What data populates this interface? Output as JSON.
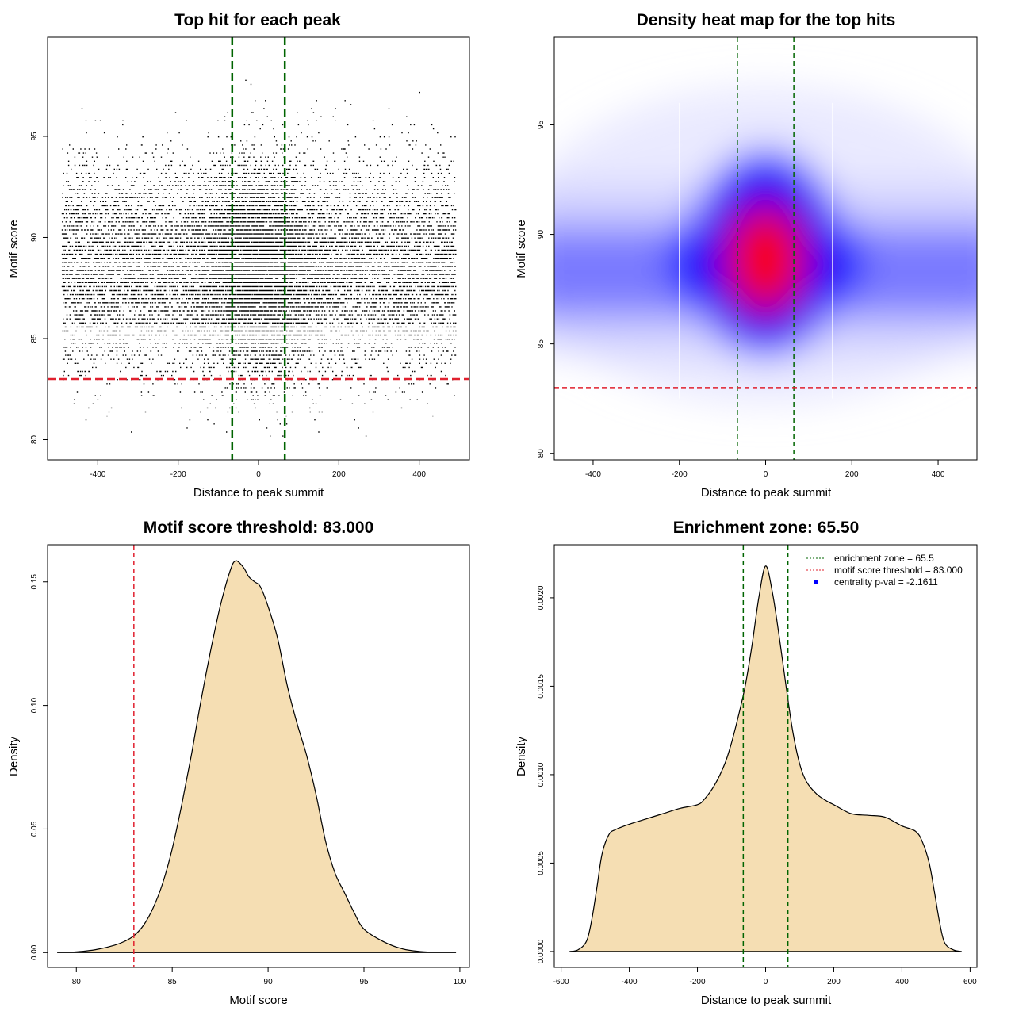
{
  "colors": {
    "fill": "#F5DEB3",
    "zone_line": "#006400",
    "threshold_line": "#E0202E",
    "points": "#000000",
    "heat_low": "#ffffff",
    "heat_mid": "#0000ff",
    "heat_high": "#ff0000",
    "legend_marker": "#0000ff"
  },
  "chart_data": [
    {
      "id": "scatter",
      "type": "scatter",
      "title": "Top hit for each peak",
      "xlabel": "Distance to peak summit",
      "ylabel": "Motif score",
      "xlim": [
        -525,
        525
      ],
      "ylim": [
        79.0,
        99.9
      ],
      "xticks": [
        -400,
        -200,
        0,
        200,
        400
      ],
      "yticks": [
        80,
        85,
        90,
        95
      ],
      "points_summary": {
        "x_range": [
          -490,
          490
        ],
        "y_range": [
          79.8,
          98.8
        ],
        "y_mode": 88.5,
        "x_center": 0
      },
      "vlines": [
        -65.5,
        65.5
      ],
      "hline": 83.0
    },
    {
      "id": "heatmap",
      "type": "heatmap",
      "title": "Density heat map for the top hits",
      "xlabel": "Distance to peak summit",
      "ylabel": "Motif score",
      "xlim": [
        -490,
        490
      ],
      "ylim": [
        79.7,
        99.0
      ],
      "xticks": [
        -400,
        -200,
        0,
        200,
        400
      ],
      "yticks": [
        80,
        85,
        90,
        95
      ],
      "hotspot": {
        "x": 0,
        "y": 89.0
      },
      "vlines": [
        -65.5,
        65.5
      ],
      "hline": 83.0
    },
    {
      "id": "score_density",
      "type": "area",
      "title": "Motif score threshold: 83.000",
      "xlabel": "Motif score",
      "ylabel": "Density",
      "xlim": [
        78.5,
        100.5
      ],
      "ylim": [
        -0.006,
        0.165
      ],
      "xticks": [
        80,
        85,
        90,
        95,
        100
      ],
      "yticks": [
        0.0,
        0.05,
        0.1,
        0.15
      ],
      "ytick_labels": [
        "0.00",
        "0.05",
        "0.10",
        "0.15"
      ],
      "x": [
        79,
        80,
        81,
        82,
        82.5,
        83,
        83.5,
        84,
        84.5,
        85,
        85.5,
        86,
        86.5,
        87,
        87.5,
        88,
        88.3,
        88.7,
        89,
        89.3,
        89.6,
        90,
        90.5,
        91,
        91.5,
        92,
        92.5,
        93,
        93.5,
        94,
        94.5,
        95,
        96,
        97,
        98,
        99,
        99.8
      ],
      "y": [
        0,
        0.0003,
        0.0012,
        0.003,
        0.0045,
        0.0068,
        0.011,
        0.018,
        0.028,
        0.042,
        0.06,
        0.08,
        0.102,
        0.122,
        0.14,
        0.154,
        0.1585,
        0.156,
        0.152,
        0.15,
        0.148,
        0.14,
        0.127,
        0.108,
        0.093,
        0.08,
        0.064,
        0.045,
        0.032,
        0.024,
        0.016,
        0.0095,
        0.0045,
        0.0015,
        0.0004,
        0.0001,
        0
      ],
      "vline": 83.0
    },
    {
      "id": "distance_density",
      "type": "area",
      "title": "Enrichment zone: 65.50",
      "xlabel": "Distance to peak summit",
      "ylabel": "Density",
      "xlim": [
        -620,
        620
      ],
      "ylim": [
        -9e-05,
        0.0023
      ],
      "xticks": [
        -600,
        -400,
        -200,
        0,
        200,
        400,
        600
      ],
      "yticks": [
        0,
        0.0005,
        0.001,
        0.0015,
        0.002
      ],
      "ytick_labels": [
        "0.0000",
        "0.0005",
        "0.0010",
        "0.0015",
        "0.0020"
      ],
      "x": [
        -575,
        -550,
        -525,
        -510,
        -495,
        -480,
        -460,
        -440,
        -400,
        -350,
        -300,
        -250,
        -200,
        -180,
        -150,
        -120,
        -100,
        -80,
        -60,
        -40,
        -20,
        0,
        20,
        40,
        60,
        80,
        100,
        120,
        150,
        180,
        200,
        250,
        300,
        350,
        400,
        440,
        460,
        480,
        495,
        510,
        525,
        550,
        575
      ],
      "y": [
        0,
        1e-05,
        6e-05,
        0.00018,
        0.00036,
        0.00055,
        0.00066,
        0.00069,
        0.00072,
        0.00075,
        0.00078,
        0.00081,
        0.00083,
        0.00086,
        0.00094,
        0.00106,
        0.00118,
        0.00133,
        0.0015,
        0.00173,
        0.002,
        0.00218,
        0.00203,
        0.00178,
        0.0015,
        0.00124,
        0.00106,
        0.00096,
        0.00089,
        0.00085,
        0.00083,
        0.00078,
        0.00077,
        0.00076,
        0.00071,
        0.00068,
        0.00062,
        0.0005,
        0.00034,
        0.00017,
        5e-05,
        1e-05,
        0
      ],
      "vlines": [
        -65.5,
        65.5
      ],
      "legend": {
        "position": "top-right",
        "entries": [
          {
            "label": "enrichment zone = 65.5",
            "style": "dotted-green"
          },
          {
            "label": "motif score threshold = 83.000",
            "style": "dotted-red"
          },
          {
            "label": "centrality p-val = -2.1611",
            "style": "blue-dot"
          }
        ]
      }
    }
  ]
}
